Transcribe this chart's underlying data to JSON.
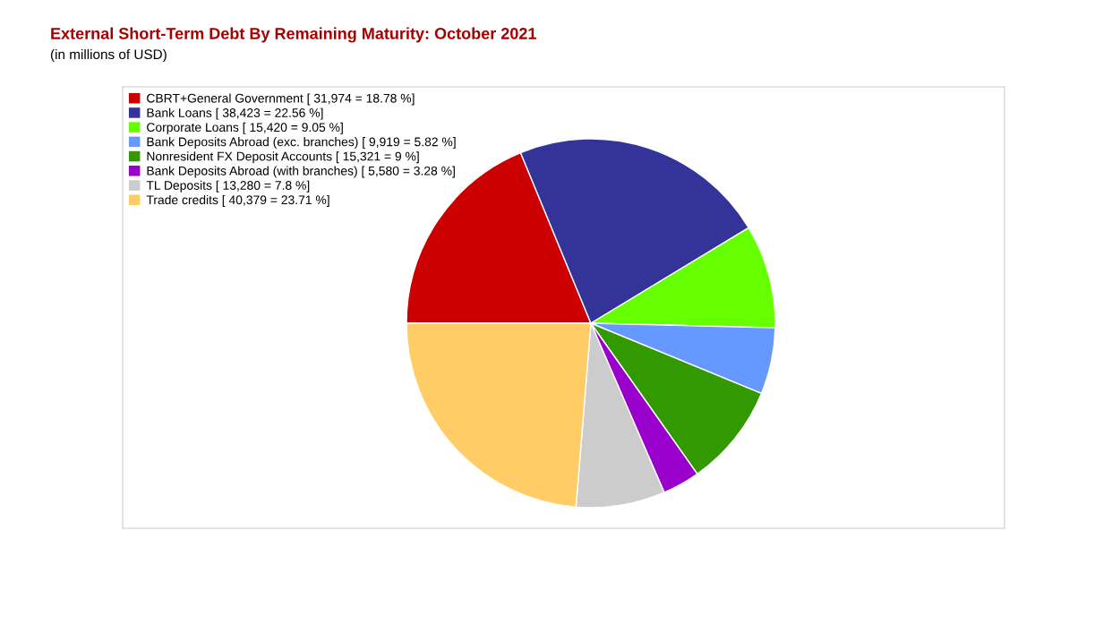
{
  "chart_data": {
    "type": "pie",
    "title": "External Short-Term Debt By Remaining Maturity: October 2021",
    "subtitle": "(in millions of USD)",
    "categories": [
      "CBRT+General Government [ 31,974 = 18.78 %]",
      "Bank Loans [ 38,423 = 22.56 %]",
      "Corporate Loans [ 15,420 = 9.05 %]",
      "Bank Deposits Abroad (exc. branches) [ 9,919 = 5.82 %]",
      "Nonresident FX Deposit Accounts [ 15,321 = 9 %]",
      "Bank Deposits Abroad (with branches) [ 5,580 = 3.28 %]",
      "TL Deposits [ 13,280 = 7.8 %]",
      "Trade credits [ 40,379 = 23.71 %]"
    ],
    "values": [
      31974,
      38423,
      15420,
      9919,
      15321,
      5580,
      13280,
      40379
    ],
    "colors": [
      "#cc0000",
      "#333399",
      "#66ff00",
      "#6699ff",
      "#339900",
      "#9900cc",
      "#cccccc",
      "#ffcc66"
    ],
    "legend": "top left"
  }
}
